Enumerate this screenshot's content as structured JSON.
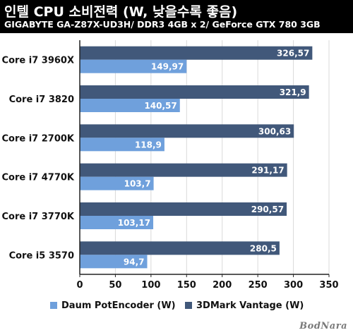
{
  "header": {
    "title": "인텔 CPU 소비전력 (W, 낮을수록 좋음)",
    "subtitle": "GIGABYTE GA-Z87X-UD3H/ DDR3 4GB x 2/ GeForce GTX 780 3GB"
  },
  "watermark": "BodNara",
  "chart_data": {
    "type": "bar",
    "orientation": "horizontal",
    "categories": [
      "Core i7 3960X",
      "Core i7 3820",
      "Core i7 2700K",
      "Core i7 4770K",
      "Core i7 3770K",
      "Core i5 3570"
    ],
    "series": [
      {
        "name": "Daum PotEncoder (W)",
        "color": "#6fa0dc",
        "values": [
          149.97,
          140.57,
          118.9,
          103.7,
          103.17,
          94.7
        ],
        "labels": [
          "149,97",
          "140,57",
          "118,9",
          "103,7",
          "103,17",
          "94,7"
        ]
      },
      {
        "name": "3DMark Vantage (W)",
        "color": "#41587a",
        "values": [
          326.57,
          321.9,
          300.63,
          291.17,
          290.57,
          280.5
        ],
        "labels": [
          "326,57",
          "321,9",
          "300,63",
          "291,17",
          "290,57",
          "280,5"
        ]
      }
    ],
    "xlim": [
      0,
      350
    ],
    "xticks": [
      0,
      50,
      100,
      150,
      200,
      250,
      300,
      350
    ],
    "grid": "vertical",
    "legend": "bottom"
  }
}
